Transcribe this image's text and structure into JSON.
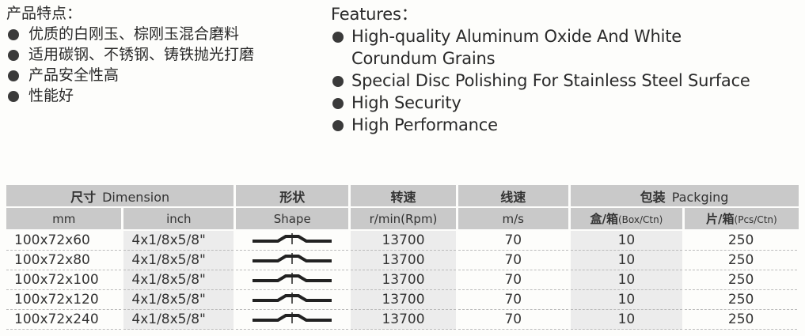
{
  "features_cn": {
    "title": "产品特点：",
    "items": [
      "优质的白刚玉、棕刚玉混合磨料",
      "适用碳钢、不锈钢、铸铁抛光打磨",
      "产品安全性高",
      "性能好"
    ]
  },
  "features_en": {
    "title": "Features：",
    "items": [
      "High-quality Aluminum Oxide And White",
      "Special Disc Polishing For Stainless Steel Surface",
      "High Security",
      "High Performance"
    ],
    "item0_cont": "Corundum Grains"
  },
  "table": {
    "headers": {
      "dimension_cn": "尺寸",
      "dimension_en": "Dimension",
      "shape_cn": "形状",
      "shape_en": "Shape",
      "speed_cn": "转速",
      "speed_en": "r/min(Rpm)",
      "linear_cn": "线速",
      "linear_en": "m/s",
      "packing_cn": "包装",
      "packing_en": "Packging",
      "mm": "mm",
      "inch": "inch",
      "box_cn": "盒/箱",
      "box_en": "(Box/Ctn)",
      "pcs_cn": "片/箱",
      "pcs_en": "(Pcs/Ctn)"
    },
    "rows": [
      {
        "mm": "100x72x60",
        "inch": "4x1/8x5/8\"",
        "rpm": "13700",
        "ms": "70",
        "box": "10",
        "pcs": "250"
      },
      {
        "mm": "100x72x80",
        "inch": "4x1/8x5/8\"",
        "rpm": "13700",
        "ms": "70",
        "box": "10",
        "pcs": "250"
      },
      {
        "mm": "100x72x100",
        "inch": "4x1/8x5/8\"",
        "rpm": "13700",
        "ms": "70",
        "box": "10",
        "pcs": "250"
      },
      {
        "mm": "100x72x120",
        "inch": "4x1/8x5/8\"",
        "rpm": "13700",
        "ms": "70",
        "box": "10",
        "pcs": "250"
      },
      {
        "mm": "100x72x240",
        "inch": "4x1/8x5/8\"",
        "rpm": "13700",
        "ms": "70",
        "box": "10",
        "pcs": "250"
      }
    ]
  }
}
